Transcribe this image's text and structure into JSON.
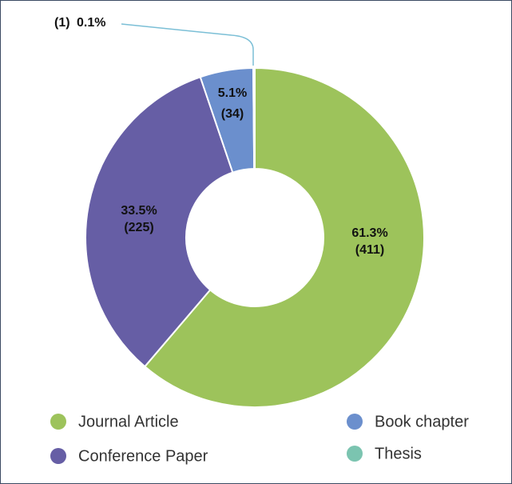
{
  "chart_data": {
    "type": "donut",
    "categories": [
      "Journal Article",
      "Conference Paper",
      "Book chapter",
      "Thesis"
    ],
    "values": [
      411,
      225,
      34,
      1
    ],
    "value_labels": [
      "(411)",
      "(225)",
      "(34)",
      "(1)"
    ],
    "percent_labels": [
      "61.3%",
      "33.5%",
      "5.1%",
      "0.1%"
    ],
    "colors": [
      "#9dc35b",
      "#665ea5",
      "#6b8fcd",
      "#7bc4b0"
    ]
  }
}
